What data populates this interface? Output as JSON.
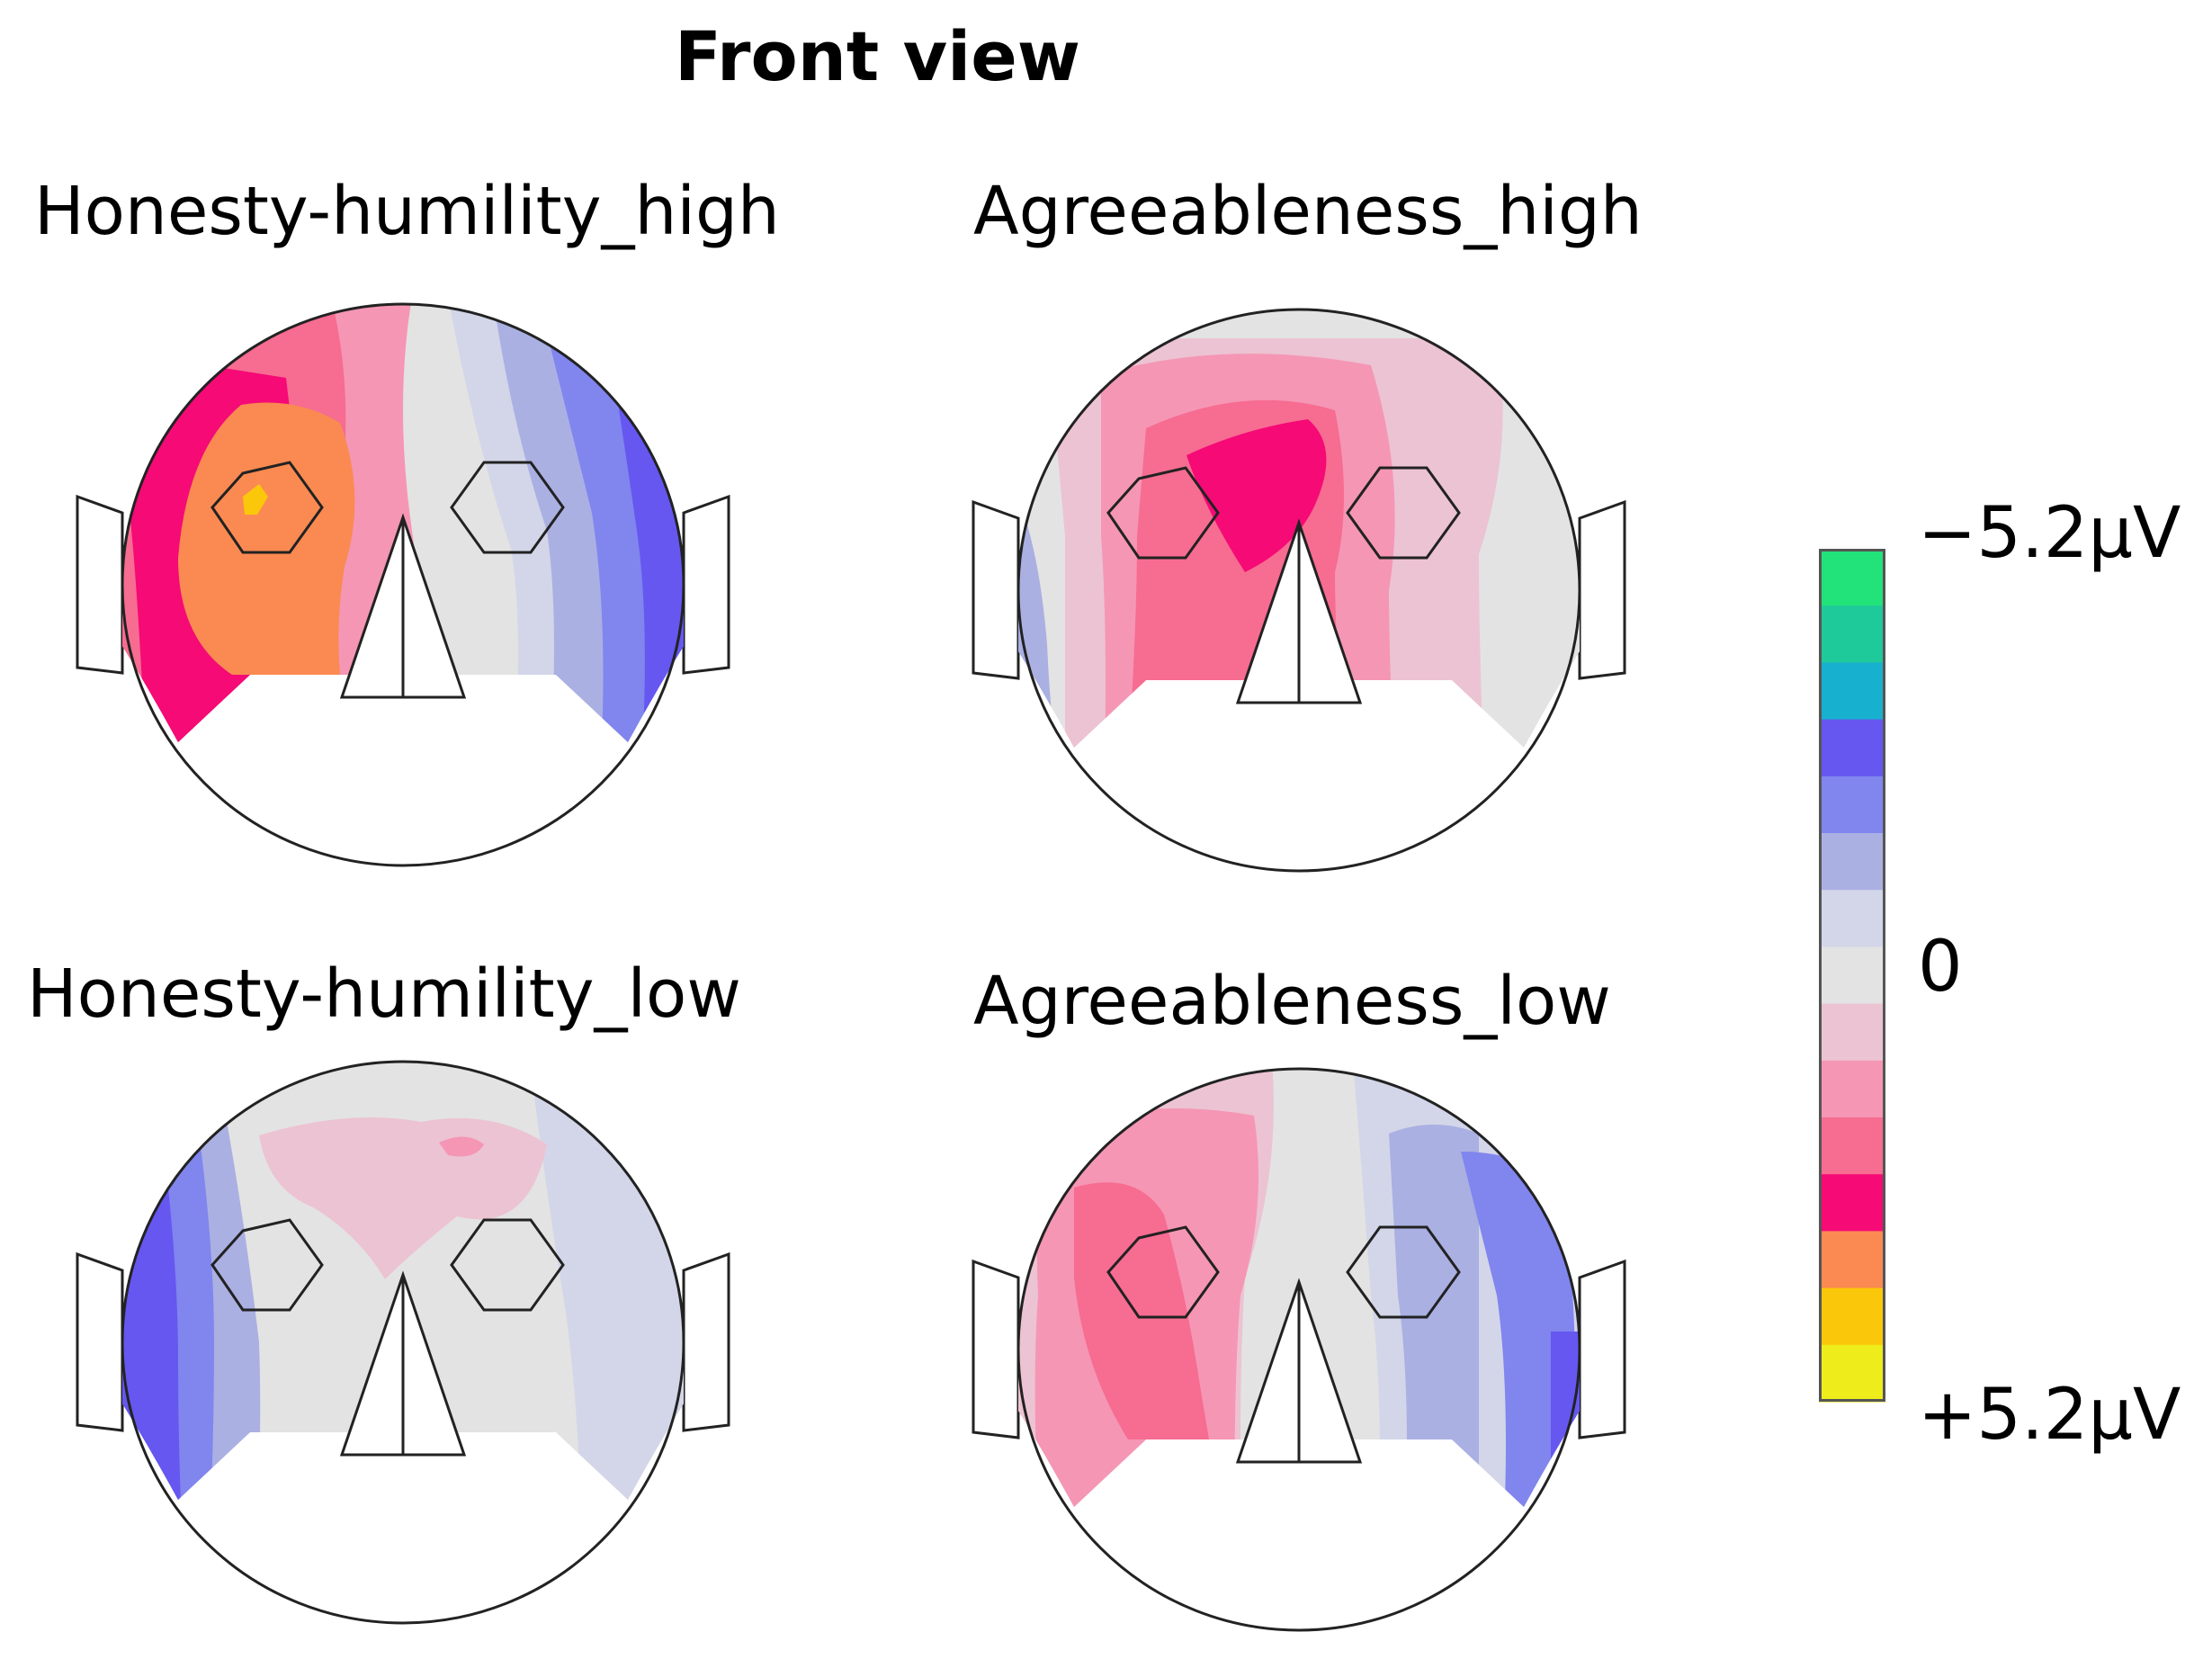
{
  "title": "Front view",
  "panels": [
    {
      "id": "hh_high",
      "label": "Honesty-humility_high"
    },
    {
      "id": "ag_high",
      "label": "Agreeableness_high"
    },
    {
      "id": "hh_low",
      "label": "Honesty-humility_low"
    },
    {
      "id": "ag_low",
      "label": "Agreeableness_low"
    }
  ],
  "colorbar": {
    "top_label": "−5.2µV",
    "mid_label": "0",
    "bottom_label": "+5.2µV",
    "min_uV": -5.2,
    "max_uV": 5.2,
    "colors": [
      "#22e27a",
      "#1ec99a",
      "#18b0cf",
      "#6557f0",
      "#8185ee",
      "#aab0e2",
      "#d3d6e8",
      "#e3e3e3",
      "#ecc3d2",
      "#f596b5",
      "#f76c91",
      "#f50a76",
      "#fa8a52",
      "#fbc70a",
      "#eeec1a"
    ]
  }
}
